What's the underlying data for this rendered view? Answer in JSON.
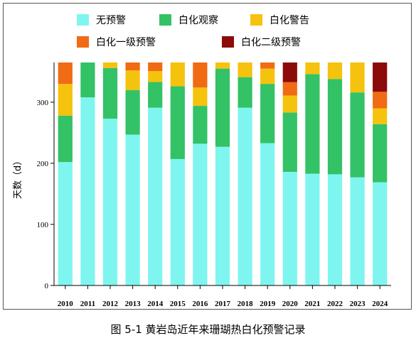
{
  "chart_data": {
    "type": "bar",
    "stacked": true,
    "categories": [
      "2010",
      "2011",
      "2012",
      "2013",
      "2014",
      "2015",
      "2016",
      "2017",
      "2018",
      "2019",
      "2020",
      "2021",
      "2022",
      "2023",
      "2024"
    ],
    "series": [
      {
        "name": "无预警",
        "color": "#7ff5f0",
        "values": [
          202,
          308,
          273,
          247,
          291,
          207,
          232,
          227,
          291,
          233,
          186,
          183,
          182,
          177,
          169
        ]
      },
      {
        "name": "白化观察",
        "color": "#33c265",
        "values": [
          76,
          57,
          83,
          73,
          42,
          119,
          62,
          128,
          50,
          97,
          97,
          163,
          156,
          139,
          95
        ]
      },
      {
        "name": "白化警告",
        "color": "#f5c20e",
        "values": [
          52,
          0,
          9,
          32,
          18,
          39,
          30,
          10,
          24,
          25,
          28,
          19,
          27,
          49,
          26
        ]
      },
      {
        "name": "白化一级预警",
        "color": "#f06b14",
        "values": [
          35,
          0,
          0,
          13,
          14,
          0,
          41,
          0,
          0,
          10,
          22,
          0,
          0,
          0,
          27
        ]
      },
      {
        "name": "白化二级预警",
        "color": "#8c0a0a",
        "values": [
          0,
          0,
          0,
          0,
          0,
          0,
          0,
          0,
          0,
          0,
          32,
          0,
          0,
          0,
          48
        ]
      }
    ],
    "ylabel": "天数（d）",
    "ylim": [
      0,
      365
    ],
    "yticks": [
      0,
      100,
      200,
      300
    ],
    "legend_position": "top"
  },
  "caption": "图 5-1  黄岩岛近年来珊瑚热白化预警记录"
}
